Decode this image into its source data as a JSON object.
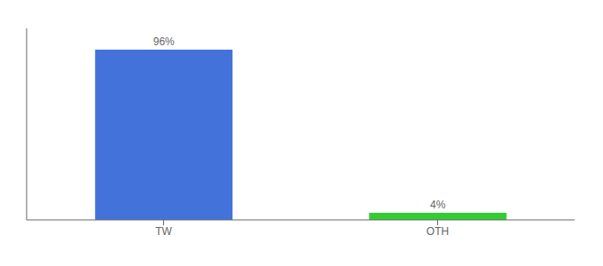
{
  "chart_data": {
    "type": "bar",
    "categories": [
      "TW",
      "OTH"
    ],
    "values": [
      96,
      4
    ],
    "value_labels": [
      "96%",
      "4%"
    ],
    "data_labels": true,
    "colors": [
      "#4472db",
      "#33cc33"
    ],
    "ylim": [
      0,
      108
    ],
    "tick_labels": "x",
    "grid": false
  }
}
